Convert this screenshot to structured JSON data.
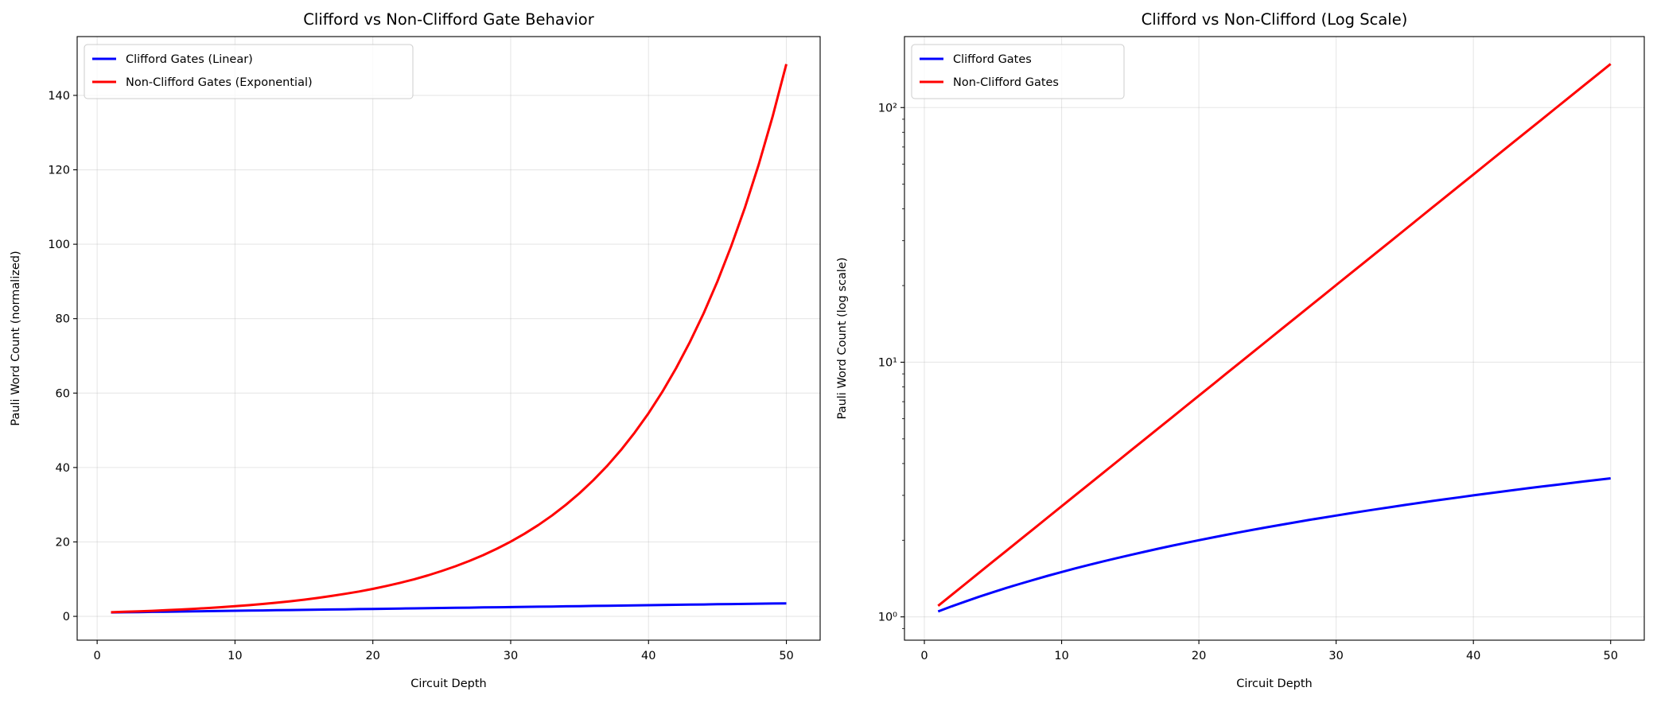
{
  "chart_data": [
    {
      "type": "line",
      "title": "Clifford vs Non-Clifford Gate Behavior",
      "xlabel": "Circuit Depth",
      "ylabel": "Pauli Word Count (normalized)",
      "xlim": [
        -1.45,
        52.45
      ],
      "ylim": [
        -6.4,
        155.8
      ],
      "yscale": "linear",
      "xticks": [
        0,
        10,
        20,
        30,
        40,
        50
      ],
      "yticks": [
        0,
        20,
        40,
        60,
        80,
        100,
        120,
        140
      ],
      "ytick_labels": [
        "0",
        "20",
        "40",
        "60",
        "80",
        "100",
        "120",
        "140"
      ],
      "xtick_labels": [
        "0",
        "10",
        "20",
        "30",
        "40",
        "50"
      ],
      "grid": true,
      "legend_position": "top-left",
      "series": [
        {
          "name": "Clifford Gates (Linear)",
          "color": "#0000ff",
          "key": "clifford"
        },
        {
          "name": "Non-Clifford Gates (Exponential)",
          "color": "#ff0000",
          "key": "nonclifford"
        }
      ]
    },
    {
      "type": "line",
      "title": "Clifford vs Non-Clifford (Log Scale)",
      "xlabel": "Circuit Depth",
      "ylabel": "Pauli Word Count (log scale)",
      "xlim": [
        -1.45,
        52.45
      ],
      "ylim": [
        0.81,
        190
      ],
      "yscale": "log",
      "xticks": [
        0,
        10,
        20,
        30,
        40,
        50
      ],
      "xtick_labels": [
        "0",
        "10",
        "20",
        "30",
        "40",
        "50"
      ],
      "yticks": [
        1,
        10,
        100
      ],
      "ytick_labels": [
        "10⁰",
        "10¹",
        "10²"
      ],
      "grid": true,
      "legend_position": "top-left",
      "series": [
        {
          "name": "Clifford Gates",
          "color": "#0000ff",
          "key": "clifford"
        },
        {
          "name": "Non-Clifford Gates",
          "color": "#ff0000",
          "key": "nonclifford"
        }
      ]
    }
  ],
  "x": [
    1,
    2,
    3,
    4,
    5,
    6,
    7,
    8,
    9,
    10,
    11,
    12,
    13,
    14,
    15,
    16,
    17,
    18,
    19,
    20,
    21,
    22,
    23,
    24,
    25,
    26,
    27,
    28,
    29,
    30,
    31,
    32,
    33,
    34,
    35,
    36,
    37,
    38,
    39,
    40,
    41,
    42,
    43,
    44,
    45,
    46,
    47,
    48,
    49,
    50
  ],
  "clifford": [
    1.05,
    1.1,
    1.15,
    1.2,
    1.25,
    1.3,
    1.35,
    1.4,
    1.45,
    1.5,
    1.55,
    1.6,
    1.65,
    1.7,
    1.75,
    1.8,
    1.85,
    1.9,
    1.95,
    2.0,
    2.05,
    2.1,
    2.15,
    2.2,
    2.25,
    2.3,
    2.35,
    2.4,
    2.45,
    2.5,
    2.55,
    2.6,
    2.65,
    2.7,
    2.75,
    2.8,
    2.85,
    2.9,
    2.95,
    3.0,
    3.05,
    3.1,
    3.15,
    3.2,
    3.25,
    3.3,
    3.35,
    3.4,
    3.45,
    3.5
  ],
  "nonclifford": [
    1.105,
    1.221,
    1.35,
    1.492,
    1.649,
    1.822,
    2.014,
    2.226,
    2.46,
    2.718,
    3.004,
    3.32,
    3.669,
    4.055,
    4.482,
    4.953,
    5.474,
    6.05,
    6.686,
    7.389,
    8.166,
    9.025,
    9.974,
    11.023,
    12.182,
    13.464,
    14.88,
    16.445,
    18.174,
    20.086,
    22.198,
    24.533,
    27.113,
    29.964,
    33.115,
    36.598,
    40.447,
    44.701,
    49.402,
    54.598,
    60.34,
    66.686,
    73.7,
    81.451,
    90.017,
    99.484,
    109.947,
    121.51,
    134.29,
    148.413
  ]
}
